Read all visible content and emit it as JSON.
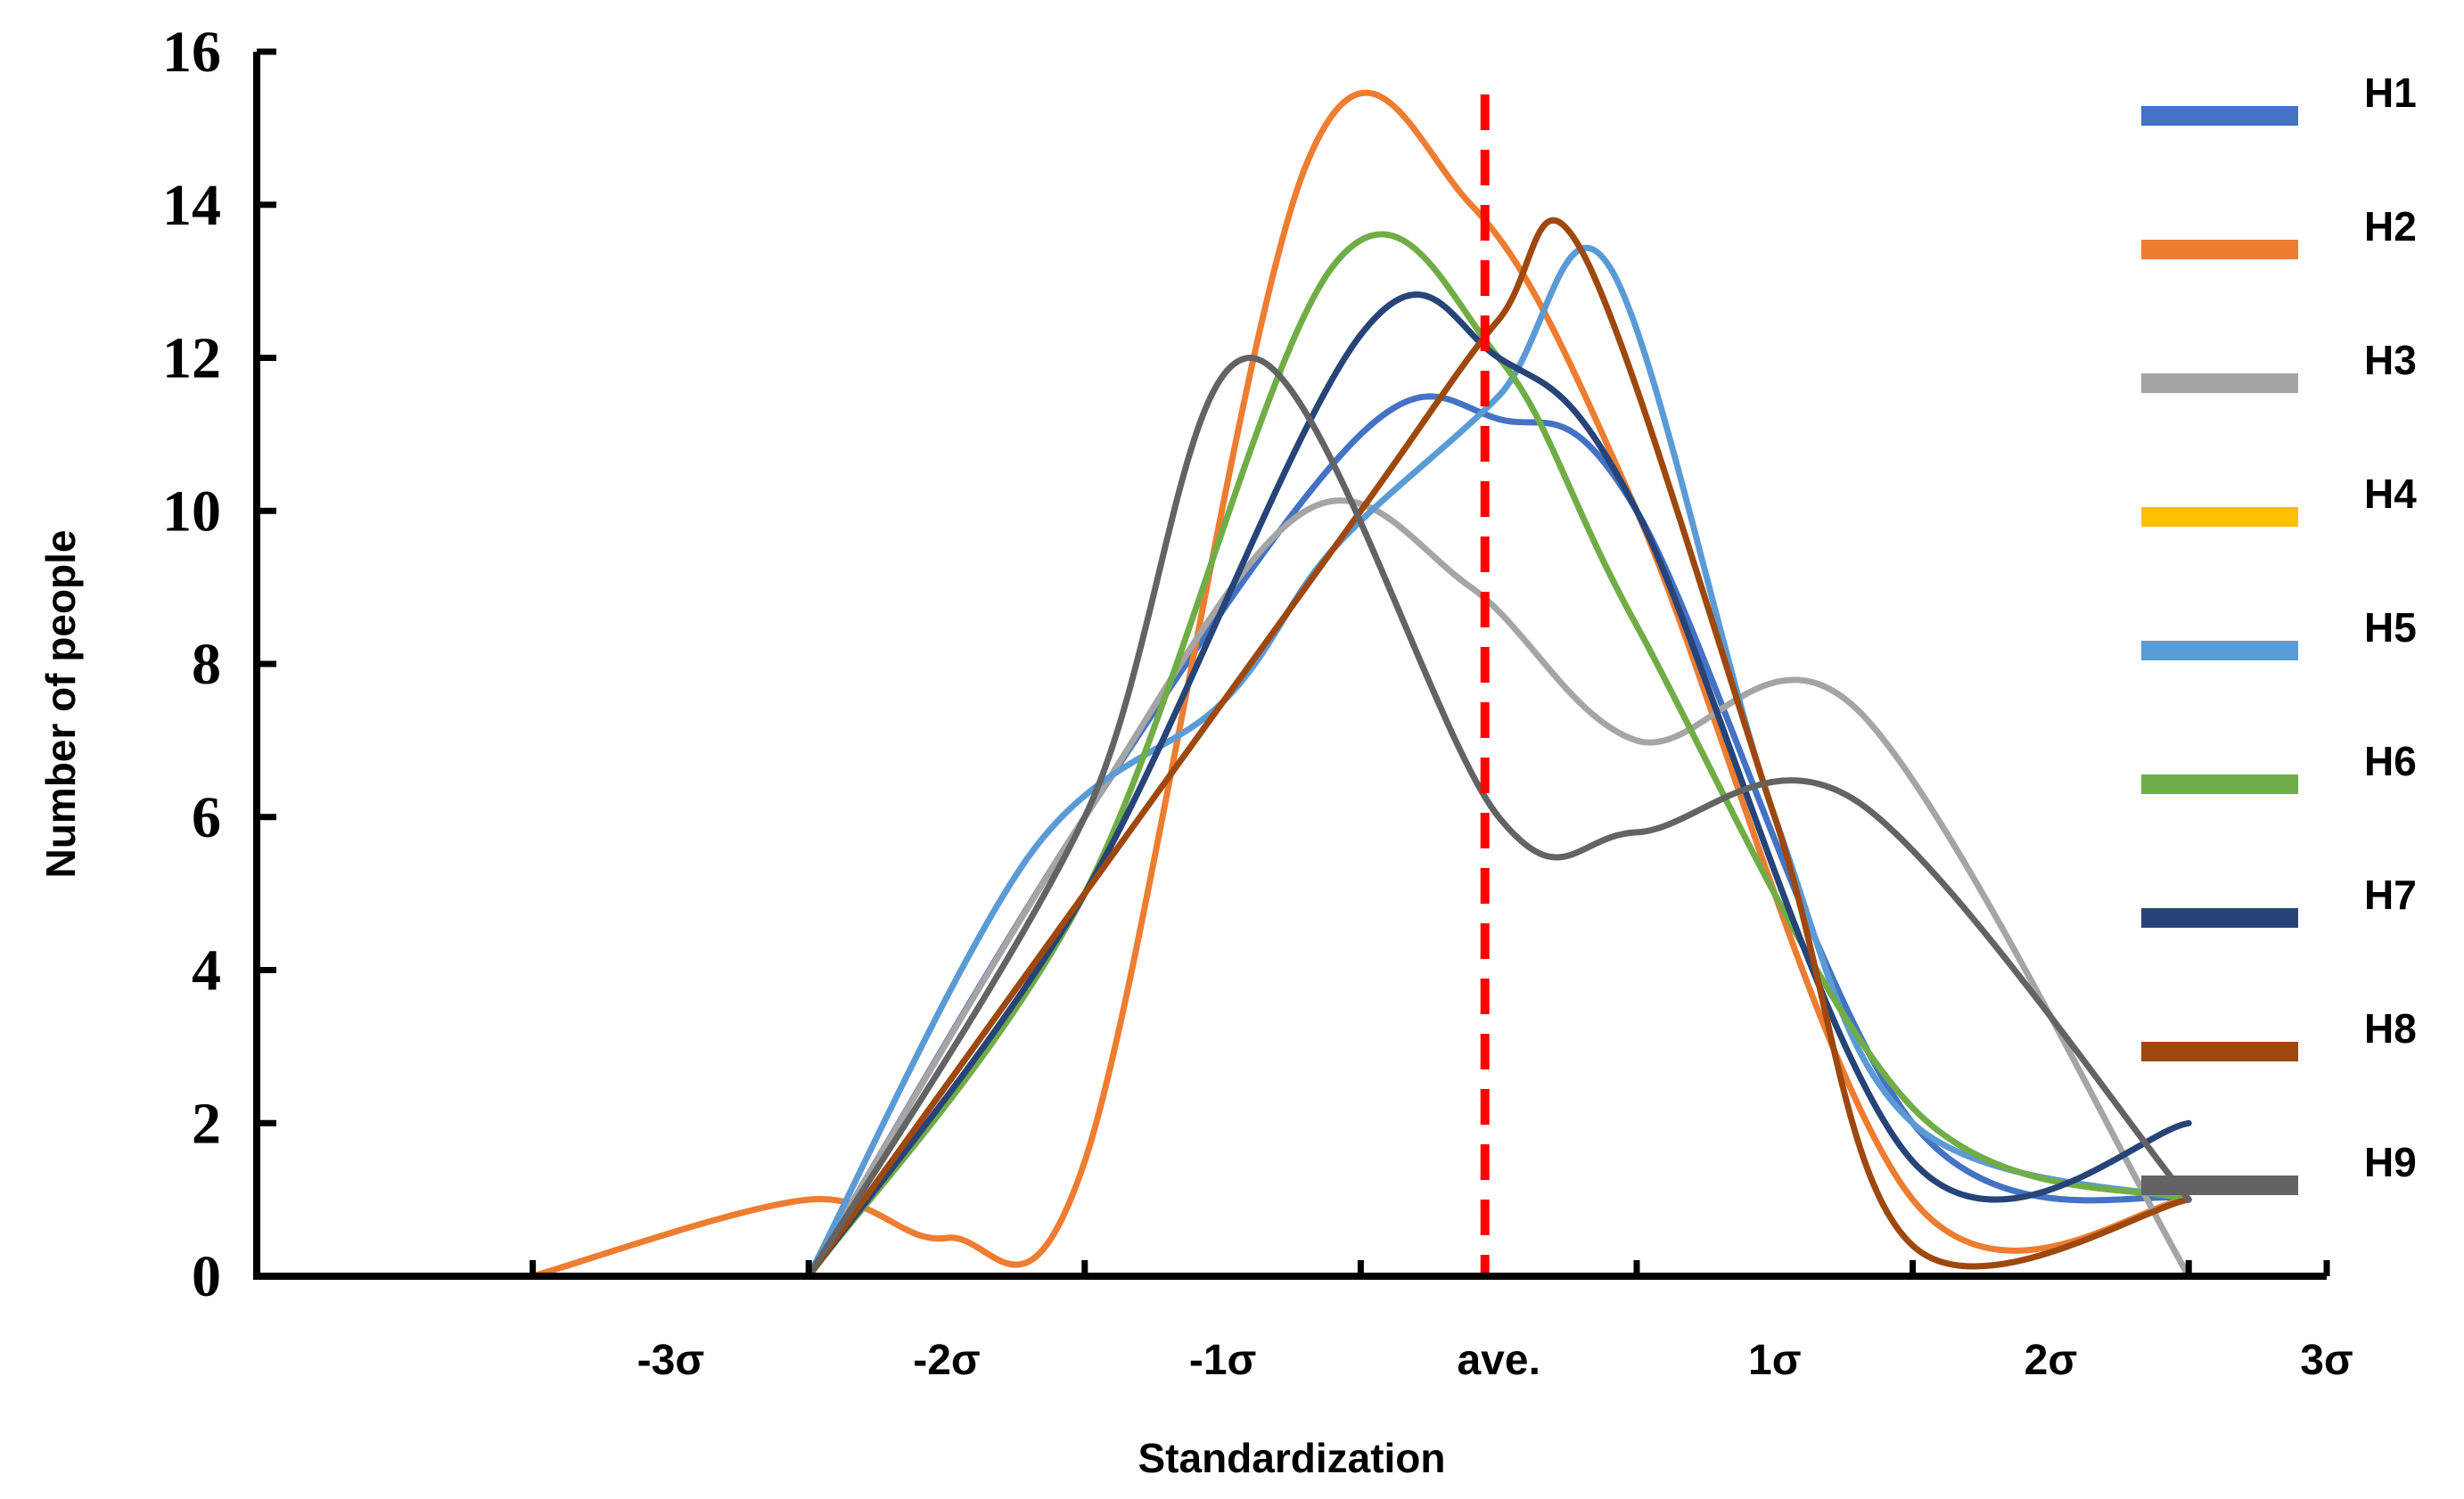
{
  "chart_data": {
    "type": "line",
    "title": "",
    "xlabel": "Standardization",
    "ylabel": "Number of people",
    "ylim": [
      0,
      16
    ],
    "xlim": [
      -4,
      3.5
    ],
    "y_ticks": [
      0,
      2,
      4,
      6,
      8,
      10,
      12,
      14,
      16
    ],
    "y_tick_labels": [
      "0",
      "2",
      "4",
      "6",
      "8",
      "10",
      "12",
      "14",
      "16"
    ],
    "x_category_labels": [
      {
        "label": "-3σ",
        "x": -2.5
      },
      {
        "label": "-2σ",
        "x": -1.5
      },
      {
        "label": "-1σ",
        "x": -0.5
      },
      {
        "label": "ave.",
        "x": 0.5
      },
      {
        "label": "1σ",
        "x": 1.5
      },
      {
        "label": "2σ",
        "x": 2.5
      },
      {
        "label": "3σ",
        "x": 3.5
      }
    ],
    "x_minor_ticks": [
      -3,
      -2,
      -1,
      0,
      1,
      2,
      3
    ],
    "mean_line": {
      "x": 0.45,
      "color": "#ff0000"
    },
    "legend_position": "right",
    "series": [
      {
        "name": "H1",
        "color": "#4472c4",
        "x": [
          -2,
          -1,
          0,
          0.5,
          1,
          2,
          3
        ],
        "values": [
          0,
          6,
          11,
          11.2,
          10,
          2,
          1
        ]
      },
      {
        "name": "H2",
        "color": "#ed7d31",
        "x": [
          -3,
          -2,
          -1.5,
          -1,
          -0.2,
          0.4,
          1,
          2,
          3
        ],
        "values": [
          0,
          1,
          0.5,
          1.5,
          14.5,
          14,
          10,
          1,
          1
        ]
      },
      {
        "name": "H3",
        "color": "#a5a5a5",
        "x": [
          -2,
          -1,
          -0.2,
          0.4,
          1,
          1.8,
          3
        ],
        "values": [
          0,
          6,
          10,
          9,
          7,
          7.4,
          0
        ]
      },
      {
        "name": "H4",
        "color": "#ffc000",
        "x": [],
        "values": []
      },
      {
        "name": "H5",
        "color": "#5b9bd5",
        "x": [
          -2,
          -1.2,
          -0.5,
          -0.1,
          0.5,
          0.9,
          1.5,
          2,
          3
        ],
        "values": [
          0,
          5.5,
          7.5,
          9.5,
          11.5,
          13.2,
          6,
          2,
          1
        ]
      },
      {
        "name": "H6",
        "color": "#70ad47",
        "x": [
          -2,
          -1,
          -0.1,
          0.5,
          1,
          2,
          3
        ],
        "values": [
          0,
          5,
          13.2,
          12,
          8.5,
          2.2,
          1
        ]
      },
      {
        "name": "H7",
        "color": "#264478",
        "x": [
          -2,
          -1,
          0,
          0.5,
          1,
          2,
          3
        ],
        "values": [
          0,
          5,
          12.3,
          12,
          10,
          1.5,
          2
        ]
      },
      {
        "name": "H8",
        "color": "#9e480e",
        "x": [
          -2,
          -1,
          0,
          0.5,
          0.8,
          1.5,
          2,
          3
        ],
        "values": [
          0,
          5,
          10,
          12.5,
          13.4,
          6,
          0.4,
          1
        ]
      },
      {
        "name": "H9",
        "color": "#636363",
        "x": [
          -2,
          -1,
          -0.4,
          0.5,
          1,
          1.8,
          3
        ],
        "values": [
          0,
          6,
          12,
          6,
          5.8,
          6.2,
          1
        ]
      }
    ]
  }
}
